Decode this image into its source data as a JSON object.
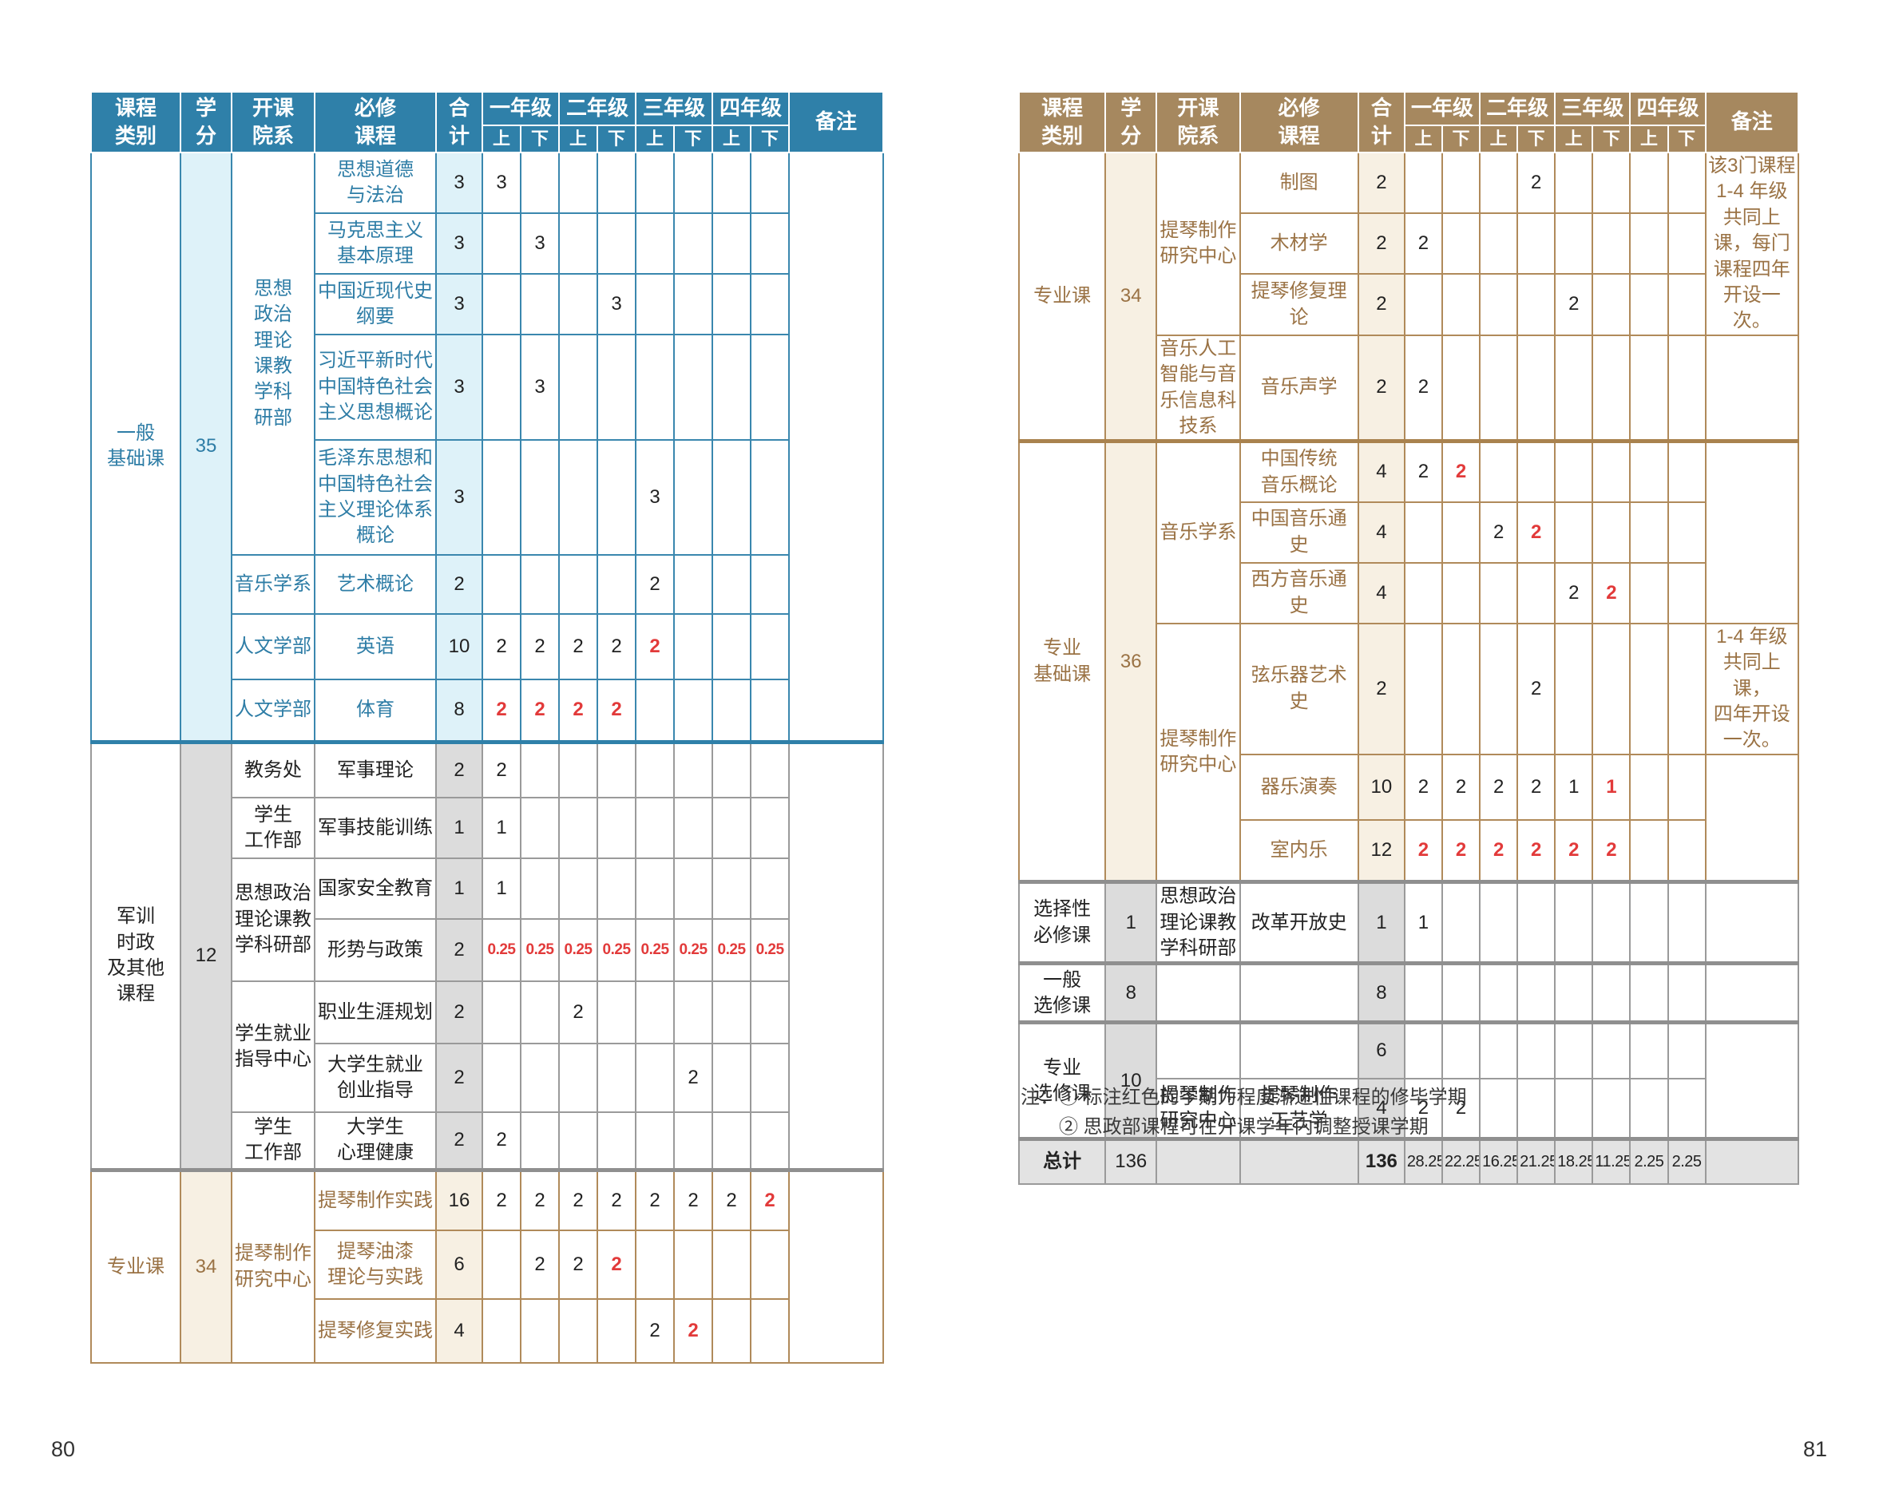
{
  "page": {
    "left_number": "80",
    "right_number": "81"
  },
  "notes": {
    "prefix": "注：",
    "items": [
      "① 标注红色的学期为程度渐进性课程的修毕学期",
      "② 思政部课程可在开课学年内调整授课学期"
    ]
  },
  "colors": {
    "blue_header": "#2F80A9",
    "blue_border": "#3A87AE",
    "blue_bg": "#DEF2F9",
    "blue_text": "#2E7DA6",
    "tan_header": "#A6885F",
    "tan_border": "#B08A5A",
    "tan_bg": "#F7F0E3",
    "tan_text": "#9A7244",
    "gray_border": "#9A9A9A",
    "gray_bg": "#DCDCDC",
    "summary_bg": "#E3E3E3",
    "red": "#E23A3A"
  },
  "header": {
    "category": "课程\n类别",
    "credits": "学\n分",
    "department": "开课\n院系",
    "course": "必修\n课程",
    "total": "合\n计",
    "grades": [
      "一年级",
      "二年级",
      "三年级",
      "四年级"
    ],
    "upper": "上",
    "lower": "下",
    "remark": "备注"
  },
  "tables": [
    {
      "name": "curriculum-table-page-80",
      "theme": "blue",
      "sections": [
        {
          "label": "一般\n基础课",
          "credits": "35",
          "theme": "blue",
          "divider": "#3A87AE",
          "rows": [
            {
              "dept": {
                "text": "思想\n政治\n理论\n课教\n学科\n研部",
                "span": 5
              },
              "course": "思想道德\n与法治",
              "total": "3",
              "sem": [
                "3",
                "",
                "",
                "",
                "",
                "",
                "",
                ""
              ],
              "red": [],
              "remark": {
                "text": "",
                "span": 8
              }
            },
            {
              "dept": null,
              "course": "马克思主义\n基本原理",
              "total": "3",
              "sem": [
                "",
                "3",
                "",
                "",
                "",
                "",
                "",
                ""
              ],
              "red": [],
              "remark": null
            },
            {
              "dept": null,
              "course": "中国近现代史\n纲要",
              "total": "3",
              "sem": [
                "",
                "",
                "",
                "3",
                "",
                "",
                "",
                ""
              ],
              "red": [],
              "remark": null
            },
            {
              "dept": null,
              "course": "习近平新时代\n中国特色社会\n主义思想概论",
              "total": "3",
              "sem": [
                "",
                "3",
                "",
                "",
                "",
                "",
                "",
                ""
              ],
              "red": [],
              "remark": null
            },
            {
              "dept": null,
              "course": "毛泽东思想和\n中国特色社会\n主义理论体系\n概论",
              "total": "3",
              "sem": [
                "",
                "",
                "",
                "",
                "3",
                "",
                "",
                ""
              ],
              "red": [],
              "remark": null
            },
            {
              "dept": {
                "text": "音乐学系",
                "span": 1
              },
              "course": "艺术概论",
              "total": "2",
              "sem": [
                "",
                "",
                "",
                "",
                "2",
                "",
                "",
                ""
              ],
              "red": [],
              "remark": null
            },
            {
              "dept": {
                "text": "人文学部",
                "span": 1
              },
              "course": "英语",
              "total": "10",
              "sem": [
                "2",
                "2",
                "2",
                "2",
                "2",
                "",
                "",
                ""
              ],
              "red": [
                4
              ],
              "remark": null
            },
            {
              "dept": {
                "text": "人文学部",
                "span": 1
              },
              "course": "体育",
              "total": "8",
              "sem": [
                "2",
                "2",
                "2",
                "2",
                "",
                "",
                "",
                ""
              ],
              "red": [
                0,
                1,
                2,
                3
              ],
              "remark": null
            }
          ]
        },
        {
          "label": "军训\n时政\n及其他\n课程",
          "credits": "12",
          "theme": "gray",
          "divider": "#2F80A9",
          "rows": [
            {
              "dept": {
                "text": "教务处",
                "span": 1
              },
              "course": "军事理论",
              "total": "2",
              "sem": [
                "2",
                "",
                "",
                "",
                "",
                "",
                "",
                ""
              ],
              "red": [],
              "remark": {
                "text": "",
                "span": 7
              }
            },
            {
              "dept": {
                "text": "学生\n工作部",
                "span": 1
              },
              "course": "军事技能训练",
              "total": "1",
              "sem": [
                "1",
                "",
                "",
                "",
                "",
                "",
                "",
                ""
              ],
              "red": [],
              "remark": null
            },
            {
              "dept": {
                "text": "思想政治\n理论课教\n学科研部",
                "span": 2
              },
              "course": "国家安全教育",
              "total": "1",
              "sem": [
                "1",
                "",
                "",
                "",
                "",
                "",
                "",
                ""
              ],
              "red": [],
              "remark": null
            },
            {
              "dept": null,
              "course": "形势与政策",
              "total": "2",
              "sem": [
                "0.25",
                "0.25",
                "0.25",
                "0.25",
                "0.25",
                "0.25",
                "0.25",
                "0.25"
              ],
              "red": [
                0,
                1,
                2,
                3,
                4,
                5,
                6,
                7
              ],
              "remark": null
            },
            {
              "dept": {
                "text": "学生就业\n指导中心",
                "span": 2
              },
              "course": "职业生涯规划",
              "total": "2",
              "sem": [
                "",
                "",
                "2",
                "",
                "",
                "",
                "",
                ""
              ],
              "red": [],
              "remark": null
            },
            {
              "dept": null,
              "course": "大学生就业\n创业指导",
              "total": "2",
              "sem": [
                "",
                "",
                "",
                "",
                "",
                "2",
                "",
                ""
              ],
              "red": [],
              "remark": null
            },
            {
              "dept": {
                "text": "学生\n工作部",
                "span": 1
              },
              "course": "大学生\n心理健康",
              "total": "2",
              "sem": [
                "2",
                "",
                "",
                "",
                "",
                "",
                "",
                ""
              ],
              "red": [],
              "remark": null
            }
          ]
        },
        {
          "label": "专业课",
          "credits": "34",
          "theme": "tan",
          "divider": "#8F8F8F",
          "rows": [
            {
              "dept": {
                "text": "提琴制作\n研究中心",
                "span": 3
              },
              "course": "提琴制作实践",
              "total": "16",
              "sem": [
                "2",
                "2",
                "2",
                "2",
                "2",
                "2",
                "2",
                "2"
              ],
              "red": [
                7
              ],
              "remark": {
                "text": "",
                "span": 3
              }
            },
            {
              "dept": null,
              "course": "提琴油漆\n理论与实践",
              "total": "6",
              "sem": [
                "",
                "2",
                "2",
                "2",
                "",
                "",
                "",
                ""
              ],
              "red": [
                3
              ],
              "remark": null
            },
            {
              "dept": null,
              "course": "提琴修复实践",
              "total": "4",
              "sem": [
                "",
                "",
                "",
                "",
                "2",
                "2",
                "",
                ""
              ],
              "red": [
                5
              ],
              "remark": null
            }
          ]
        }
      ]
    },
    {
      "name": "curriculum-table-page-81",
      "theme": "tan",
      "sections": [
        {
          "label": "专业课",
          "credits": "34",
          "theme": "tan",
          "divider": "#B08A5A",
          "rows": [
            {
              "dept": {
                "text": "提琴制作\n研究中心",
                "span": 3
              },
              "course": "制图",
              "total": "2",
              "sem": [
                "",
                "",
                "",
                "2",
                "",
                "",
                "",
                ""
              ],
              "red": [],
              "remark": {
                "text": "该3门课程 1-4 年级共同上课，每门课程四年开设一次。",
                "span": 3
              }
            },
            {
              "dept": null,
              "course": "木材学",
              "total": "2",
              "sem": [
                "2",
                "",
                "",
                "",
                "",
                "",
                "",
                ""
              ],
              "red": [],
              "remark": null
            },
            {
              "dept": null,
              "course": "提琴修复理论",
              "total": "2",
              "sem": [
                "",
                "",
                "",
                "",
                "2",
                "",
                "",
                ""
              ],
              "red": [],
              "remark": null
            },
            {
              "dept": {
                "text": "音乐人工\n智能与音\n乐信息科\n技系",
                "span": 1
              },
              "course": "音乐声学",
              "total": "2",
              "sem": [
                "2",
                "",
                "",
                "",
                "",
                "",
                "",
                ""
              ],
              "red": [],
              "remark": {
                "text": "",
                "span": 1
              }
            }
          ]
        },
        {
          "label": "专业\n基础课",
          "credits": "36",
          "theme": "tan",
          "divider": "#A9824E",
          "rows": [
            {
              "dept": {
                "text": "音乐学系",
                "span": 3
              },
              "course": "中国传统\n音乐概论",
              "total": "4",
              "sem": [
                "2",
                "2",
                "",
                "",
                "",
                "",
                "",
                ""
              ],
              "red": [
                1
              ],
              "remark": {
                "text": "",
                "span": 3
              }
            },
            {
              "dept": null,
              "course": "中国音乐通史",
              "total": "4",
              "sem": [
                "",
                "",
                "2",
                "2",
                "",
                "",
                "",
                ""
              ],
              "red": [
                3
              ],
              "remark": null
            },
            {
              "dept": null,
              "course": "西方音乐通史",
              "total": "4",
              "sem": [
                "",
                "",
                "",
                "",
                "2",
                "2",
                "",
                ""
              ],
              "red": [
                5
              ],
              "remark": null
            },
            {
              "dept": {
                "text": "提琴制作\n研究中心",
                "span": 3
              },
              "course": "弦乐器艺术史",
              "total": "2",
              "sem": [
                "",
                "",
                "",
                "2",
                "",
                "",
                "",
                ""
              ],
              "red": [],
              "remark": {
                "text": "1-4 年级\n共同上课，\n四年开设\n一次。",
                "span": 1
              }
            },
            {
              "dept": null,
              "course": "器乐演奏",
              "total": "10",
              "sem": [
                "2",
                "2",
                "2",
                "2",
                "1",
                "1",
                "",
                ""
              ],
              "red": [
                5
              ],
              "remark": {
                "text": "",
                "span": 2
              }
            },
            {
              "dept": null,
              "course": "室内乐",
              "total": "12",
              "sem": [
                "2",
                "2",
                "2",
                "2",
                "2",
                "2",
                "",
                ""
              ],
              "red": [
                0,
                1,
                2,
                3,
                4,
                5
              ],
              "remark": null
            }
          ]
        },
        {
          "label": "选择性\n必修课",
          "credits": "1",
          "theme": "gray",
          "divider": "#8F8F8F",
          "rows": [
            {
              "dept": {
                "text": "思想政治\n理论课教\n学科研部",
                "span": 1
              },
              "course": "改革开放史",
              "total": "1",
              "sem": [
                "1",
                "",
                "",
                "",
                "",
                "",
                "",
                ""
              ],
              "red": [],
              "remark": {
                "text": "",
                "span": 1
              }
            }
          ]
        },
        {
          "label": "一般\n选修课",
          "credits": "8",
          "theme": "gray",
          "divider": "#8F8F8F",
          "rows": [
            {
              "dept": {
                "text": "",
                "span": 1
              },
              "course": "",
              "total": "8",
              "sem": [
                "",
                "",
                "",
                "",
                "",
                "",
                "",
                ""
              ],
              "red": [],
              "remark": {
                "text": "",
                "span": 1
              }
            }
          ]
        },
        {
          "label": "专业\n选修课",
          "credits": "10",
          "theme": "gray",
          "divider": "#8F8F8F",
          "rows": [
            {
              "dept": {
                "text": "",
                "span": 1
              },
              "course": "",
              "total": "6",
              "sem": [
                "",
                "",
                "",
                "",
                "",
                "",
                "",
                ""
              ],
              "red": [],
              "remark": {
                "text": "",
                "span": 2
              }
            },
            {
              "dept": {
                "text": "提琴制作\n研究中心",
                "span": 1
              },
              "course": "提琴制作\n工艺学",
              "total": "4",
              "sem": [
                "2",
                "2",
                "",
                "",
                "",
                "",
                "",
                ""
              ],
              "red": [],
              "remark": null
            }
          ]
        },
        {
          "label": "总计",
          "credits": "136",
          "theme": "summary",
          "divider": "#8F8F8F",
          "rows": [
            {
              "dept": {
                "text": "",
                "span": 1
              },
              "course": "",
              "total": "136",
              "sem": [
                "28.25",
                "22.25",
                "16.25",
                "21.25",
                "18.25",
                "11.25",
                "2.25",
                "2.25"
              ],
              "red": [],
              "remark": {
                "text": "",
                "span": 1
              }
            }
          ]
        }
      ]
    }
  ]
}
